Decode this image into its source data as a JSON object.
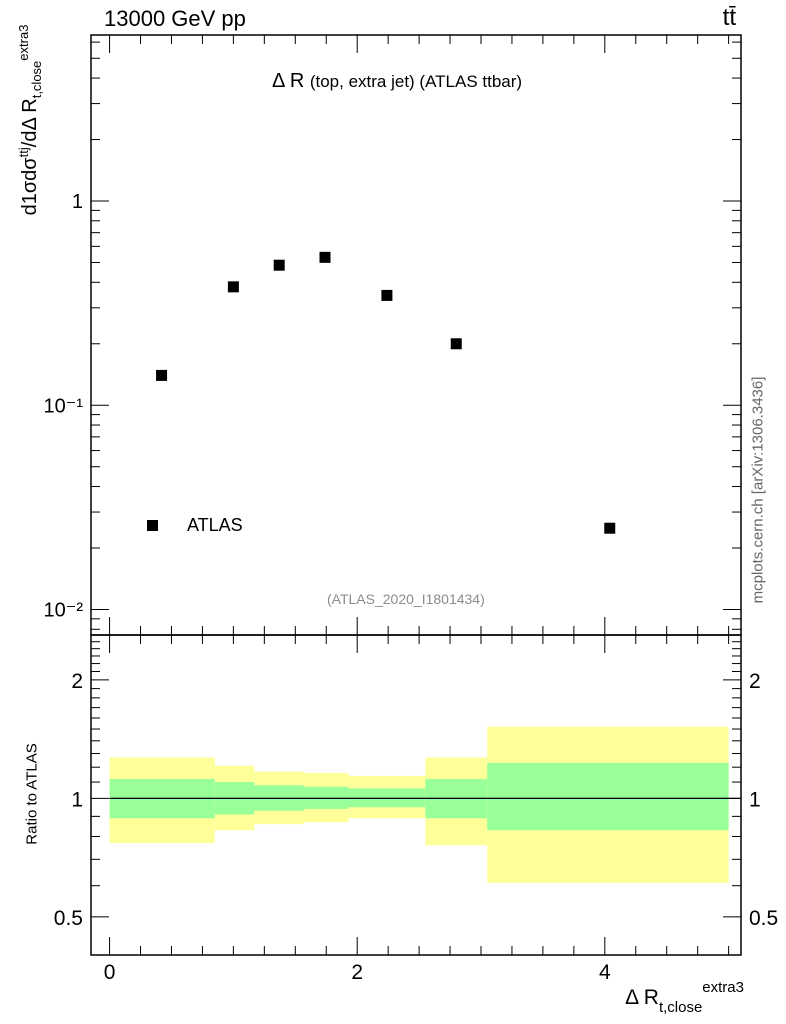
{
  "header": {
    "energy": "13000 GeV pp",
    "process": "tt̄"
  },
  "title": {
    "main": "Δ R",
    "detail": "(top, extra jet) (ATLAS ttbar)"
  },
  "legend": {
    "label": "ATLAS"
  },
  "analysis_id": "(ATLAS_2020_I1801434)",
  "side_label": "mcplots.cern.ch [arXiv:1306.3436]",
  "ratio_ylabel": "Ratio to ATLAS",
  "main_ylabel": {
    "prefix": "d",
    "frac": "1σ",
    "mid": "dσ",
    "sup": "ttj",
    "denom": "dΔ R",
    "sub": "t,close",
    "sup2": "extra3"
  },
  "xlabel": {
    "main": "Δ R",
    "sup": "extra3",
    "sub": "t,close"
  },
  "colors": {
    "band_outer": "#ffff99",
    "band_inner": "#99ff99",
    "marker": "#000000",
    "analysis_text": "#8c8c8c"
  },
  "chart_data": [
    {
      "type": "scatter",
      "yscale": "log",
      "xlim": [
        -0.15,
        5.1
      ],
      "ylim": [
        0.0075,
        6.5
      ],
      "y_ticks": [
        0.01,
        0.1,
        1
      ],
      "y_tick_labels": [
        "10⁻²",
        "10⁻¹",
        "1"
      ],
      "series": [
        {
          "name": "ATLAS",
          "x": [
            0.42,
            1.0,
            1.37,
            1.74,
            2.24,
            2.8,
            4.04
          ],
          "y": [
            0.14,
            0.38,
            0.485,
            0.53,
            0.345,
            0.2,
            0.025
          ]
        }
      ]
    },
    {
      "type": "area",
      "yscale": "log",
      "xlim": [
        -0.15,
        5.1
      ],
      "ylim": [
        0.4,
        2.6
      ],
      "x_ticks": [
        0,
        2,
        4
      ],
      "x_tick_labels": [
        "0",
        "2",
        "4"
      ],
      "y_ticks": [
        0.5,
        1,
        2
      ],
      "y_tick_labels": [
        "0.5",
        "1",
        "2"
      ],
      "reference_line": 1,
      "bins": [
        {
          "x0": 0.0,
          "x1": 0.85,
          "inner": [
            0.89,
            1.12
          ],
          "outer": [
            0.77,
            1.27
          ]
        },
        {
          "x0": 0.85,
          "x1": 1.17,
          "inner": [
            0.91,
            1.1
          ],
          "outer": [
            0.83,
            1.21
          ]
        },
        {
          "x0": 1.17,
          "x1": 1.57,
          "inner": [
            0.93,
            1.08
          ],
          "outer": [
            0.86,
            1.17
          ]
        },
        {
          "x0": 1.57,
          "x1": 1.93,
          "inner": [
            0.94,
            1.07
          ],
          "outer": [
            0.87,
            1.16
          ]
        },
        {
          "x0": 1.93,
          "x1": 2.55,
          "inner": [
            0.95,
            1.06
          ],
          "outer": [
            0.89,
            1.14
          ]
        },
        {
          "x0": 2.55,
          "x1": 3.05,
          "inner": [
            0.89,
            1.12
          ],
          "outer": [
            0.76,
            1.27
          ]
        },
        {
          "x0": 3.05,
          "x1": 5.0,
          "inner": [
            0.83,
            1.23
          ],
          "outer": [
            0.61,
            1.52
          ]
        }
      ]
    }
  ]
}
